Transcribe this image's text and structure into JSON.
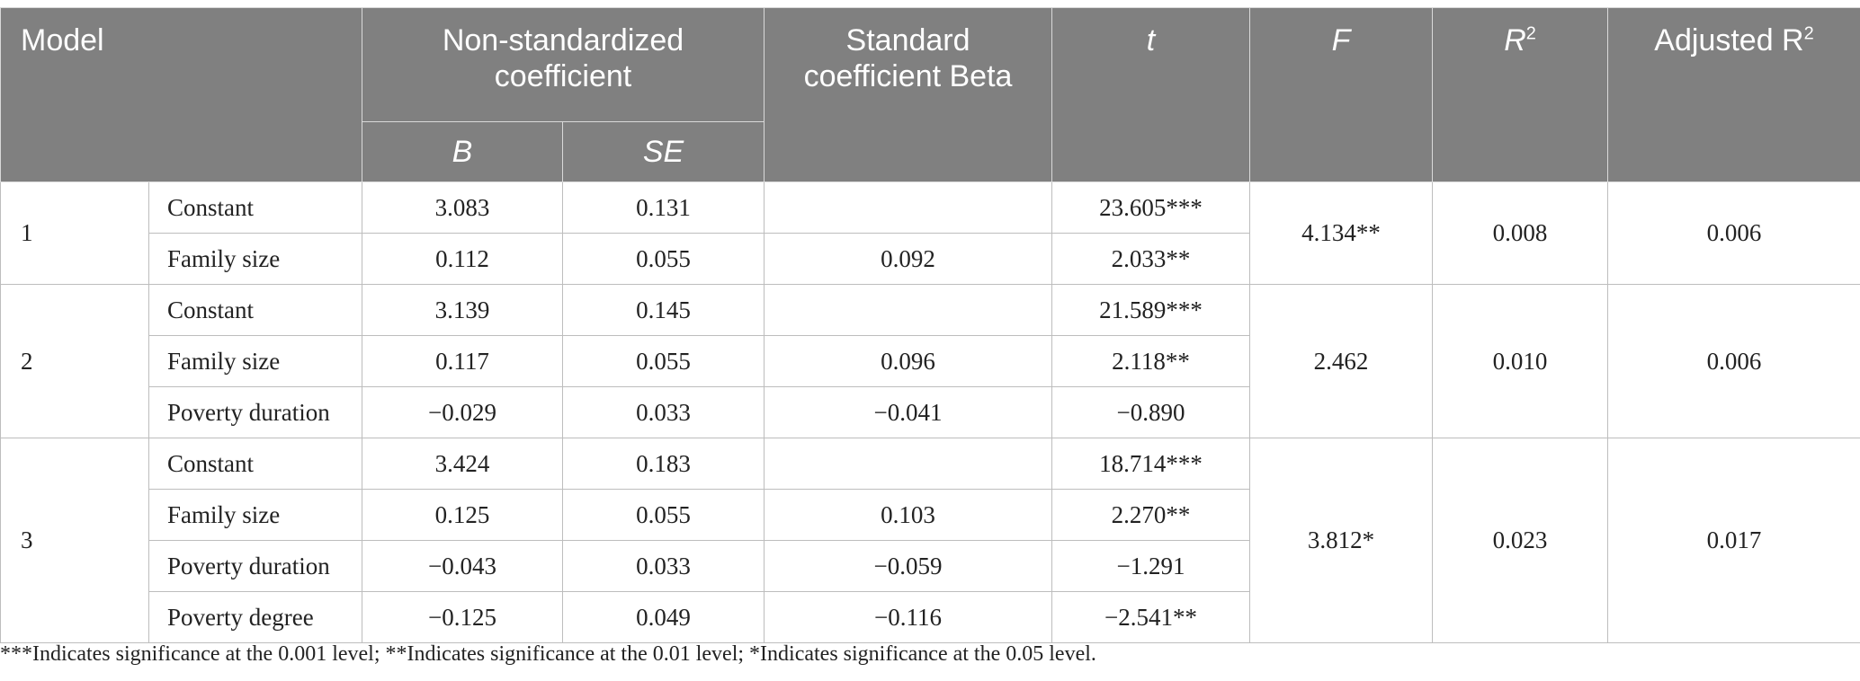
{
  "table": {
    "headers": {
      "model": "Model",
      "non_std": "Non-standardized coefficient",
      "b": "B",
      "se": "SE",
      "std_beta": "Standard coefficient Beta",
      "t": "t",
      "f": "F",
      "r2_base": "R",
      "r2_sup": "2",
      "adj_r2_base": "Adjusted R",
      "adj_r2_sup": "2"
    },
    "models": [
      {
        "model": "1",
        "f": "4.134**",
        "r2": "0.008",
        "adj_r2": "0.006",
        "rows": [
          {
            "variable": "Constant",
            "b": "3.083",
            "se": "0.131",
            "beta": "",
            "t": "23.605***"
          },
          {
            "variable": "Family size",
            "b": "0.112",
            "se": "0.055",
            "beta": "0.092",
            "t": "2.033**"
          }
        ]
      },
      {
        "model": "2",
        "f": "2.462",
        "r2": "0.010",
        "adj_r2": "0.006",
        "rows": [
          {
            "variable": "Constant",
            "b": "3.139",
            "se": "0.145",
            "beta": "",
            "t": "21.589***"
          },
          {
            "variable": "Family size",
            "b": "0.117",
            "se": "0.055",
            "beta": "0.096",
            "t": "2.118**"
          },
          {
            "variable": "Poverty duration",
            "b": "−0.029",
            "se": "0.033",
            "beta": "−0.041",
            "t": "−0.890"
          }
        ]
      },
      {
        "model": "3",
        "f": "3.812*",
        "r2": "0.023",
        "adj_r2": "0.017",
        "rows": [
          {
            "variable": "Constant",
            "b": "3.424",
            "se": "0.183",
            "beta": "",
            "t": "18.714***"
          },
          {
            "variable": "Family size",
            "b": "0.125",
            "se": "0.055",
            "beta": "0.103",
            "t": "2.270**"
          },
          {
            "variable": "Poverty duration",
            "b": "−0.043",
            "se": "0.033",
            "beta": "−0.059",
            "t": "−1.291"
          },
          {
            "variable": "Poverty degree",
            "b": "−0.125",
            "se": "0.049",
            "beta": "−0.116",
            "t": "−2.541**"
          }
        ]
      }
    ]
  },
  "note": "***Indicates significance at the 0.001 level; **Indicates significance at the 0.01 level; *Indicates significance at the 0.05 level."
}
